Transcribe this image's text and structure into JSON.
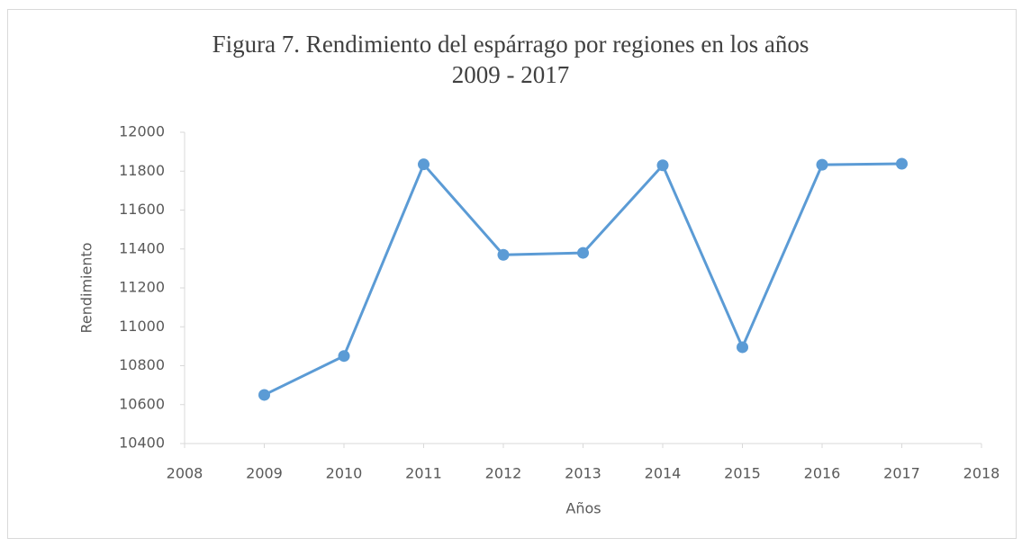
{
  "chart_data": {
    "type": "line",
    "title": [
      "Figura 7. Rendimiento del espárrago por regiones en los años",
      "2009 - 2017"
    ],
    "x_label": "Años",
    "y_label": "Rendimiento",
    "x": [
      2009,
      2010,
      2011,
      2012,
      2013,
      2014,
      2015,
      2016,
      2017
    ],
    "series": [
      {
        "name": "Rendimiento",
        "color": "#5b9bd5",
        "values": [
          10650,
          10850,
          11835,
          11370,
          11380,
          11830,
          10895,
          11833,
          11838
        ]
      }
    ],
    "xlim": [
      2008,
      2018
    ],
    "xticks": [
      2008,
      2009,
      2010,
      2011,
      2012,
      2013,
      2014,
      2015,
      2016,
      2017,
      2018
    ],
    "ylim": [
      10400,
      12000
    ],
    "yticks": [
      10400,
      10600,
      10800,
      11000,
      11200,
      11400,
      11600,
      11800,
      12000
    ],
    "grid": false,
    "legend": false
  }
}
